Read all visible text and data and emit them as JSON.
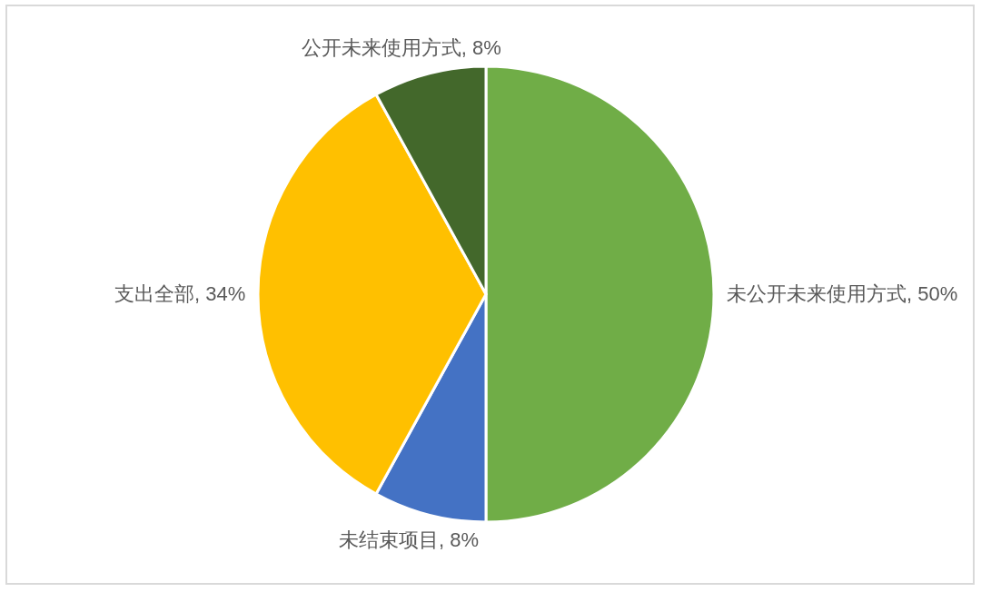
{
  "chart_data": {
    "type": "pie",
    "categories": [
      "未公开未来使用方式",
      "未结束项目",
      "支出全部",
      "公开未来使用方式"
    ],
    "values": [
      50,
      8,
      34,
      8
    ],
    "colors": [
      "#70ad47",
      "#4472c4",
      "#ffc000",
      "#43682b"
    ],
    "value_labels": [
      ", 50%",
      ", 8%",
      ", 34%",
      ", 8%"
    ]
  }
}
